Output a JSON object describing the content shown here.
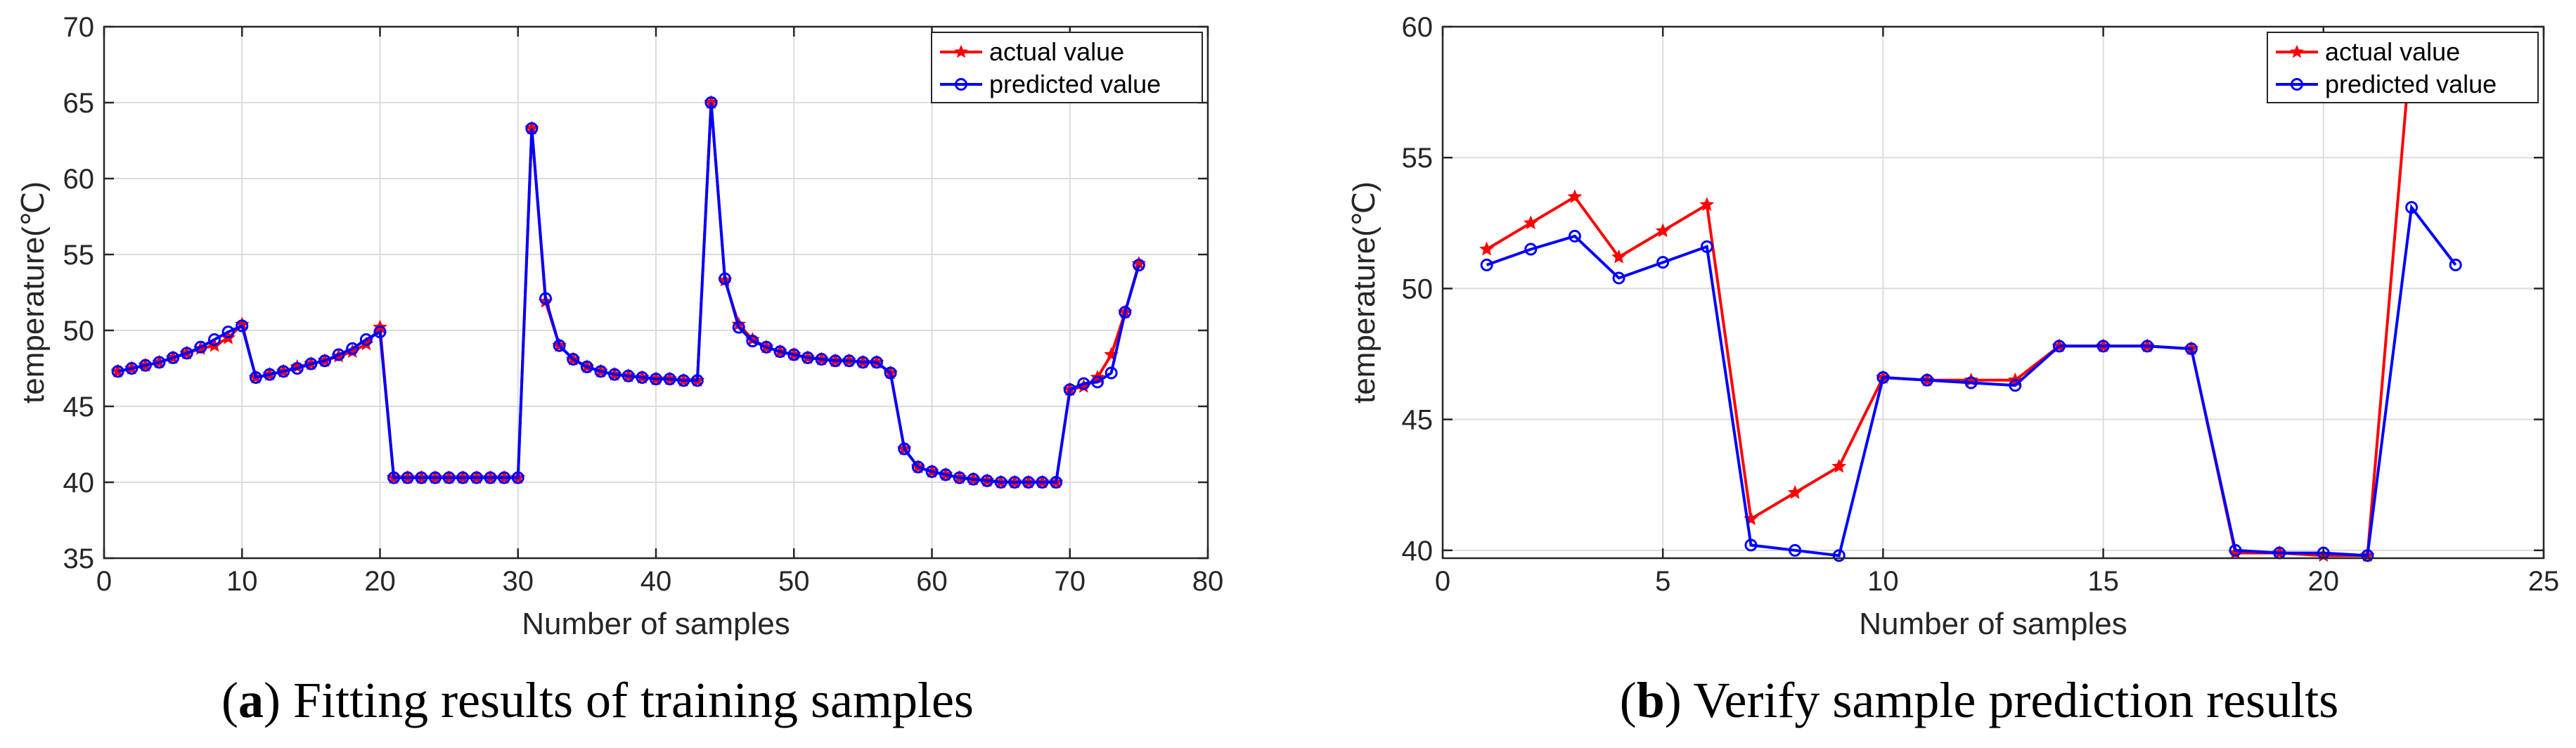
{
  "colors": {
    "actual": "#ff0000",
    "predicted": "#0000ff"
  },
  "chart_data": [
    {
      "type": "line",
      "caption_label": "a",
      "caption_text": "Fitting results of training samples",
      "xlabel": "Number of samples",
      "ylabel": "temperature(℃)",
      "xlim": [
        0,
        80
      ],
      "ylim": [
        35,
        70
      ],
      "xticks": [
        0,
        10,
        20,
        30,
        40,
        50,
        60,
        70,
        80
      ],
      "yticks": [
        35,
        40,
        45,
        50,
        55,
        60,
        65,
        70
      ],
      "grid": true,
      "legend_position": "top-right",
      "x": [
        1,
        2,
        3,
        4,
        5,
        6,
        7,
        8,
        9,
        10,
        11,
        12,
        13,
        14,
        15,
        16,
        17,
        18,
        19,
        20,
        21,
        22,
        23,
        24,
        25,
        26,
        27,
        28,
        29,
        30,
        31,
        32,
        33,
        34,
        35,
        36,
        37,
        38,
        39,
        40,
        41,
        42,
        43,
        44,
        45,
        46,
        47,
        48,
        49,
        50,
        51,
        52,
        53,
        54,
        55,
        56,
        57,
        58,
        59,
        60,
        61,
        62,
        63,
        64,
        65,
        66,
        67,
        68,
        69,
        70,
        71,
        72,
        73,
        74,
        75
      ],
      "series": [
        {
          "name": "actual value",
          "color": "#ff0000",
          "marker": "star",
          "values": [
            47.3,
            47.5,
            47.7,
            47.9,
            48.2,
            48.5,
            48.8,
            49.0,
            49.5,
            50.4,
            46.9,
            47.1,
            47.3,
            47.6,
            47.8,
            48.0,
            48.3,
            48.6,
            49.1,
            50.2,
            40.3,
            40.3,
            40.3,
            40.3,
            40.3,
            40.3,
            40.3,
            40.3,
            40.3,
            40.3,
            63.3,
            51.9,
            49.0,
            48.1,
            47.6,
            47.3,
            47.1,
            47.0,
            46.9,
            46.8,
            46.8,
            46.7,
            46.7,
            65.0,
            53.3,
            50.4,
            49.4,
            48.9,
            48.6,
            48.4,
            48.2,
            48.1,
            48.0,
            48.0,
            47.9,
            47.9,
            47.2,
            42.2,
            41.0,
            40.7,
            40.5,
            40.3,
            40.2,
            40.1,
            40.0,
            40.0,
            40.0,
            40.0,
            40.0,
            46.1,
            46.3,
            46.9,
            48.4,
            51.2,
            54.4
          ]
        },
        {
          "name": "predicted value",
          "color": "#0000ff",
          "marker": "circle",
          "values": [
            47.3,
            47.5,
            47.7,
            47.9,
            48.2,
            48.5,
            48.9,
            49.4,
            49.9,
            50.3,
            46.9,
            47.1,
            47.3,
            47.5,
            47.8,
            48.0,
            48.4,
            48.8,
            49.4,
            49.9,
            40.3,
            40.3,
            40.3,
            40.3,
            40.3,
            40.3,
            40.3,
            40.3,
            40.3,
            40.3,
            63.3,
            52.1,
            49.0,
            48.1,
            47.6,
            47.3,
            47.1,
            47.0,
            46.9,
            46.8,
            46.8,
            46.7,
            46.7,
            65.0,
            53.4,
            50.2,
            49.3,
            48.9,
            48.6,
            48.4,
            48.2,
            48.1,
            48.0,
            48.0,
            47.9,
            47.9,
            47.2,
            42.2,
            41.0,
            40.7,
            40.5,
            40.3,
            40.2,
            40.1,
            40.0,
            40.0,
            40.0,
            40.0,
            40.0,
            46.1,
            46.5,
            46.6,
            47.2,
            51.2,
            54.3
          ]
        }
      ]
    },
    {
      "type": "line",
      "caption_label": "b",
      "caption_text": "Verify sample prediction results",
      "xlabel": "Number of samples",
      "ylabel": "temperature(℃)",
      "xlim": [
        0,
        25
      ],
      "ylim": [
        39.7,
        60
      ],
      "xticks": [
        0,
        5,
        10,
        15,
        20,
        25
      ],
      "yticks": [
        40,
        45,
        50,
        55,
        60
      ],
      "grid": true,
      "legend_position": "top-right",
      "x": [
        1,
        2,
        3,
        4,
        5,
        6,
        7,
        8,
        9,
        10,
        11,
        12,
        13,
        14,
        15,
        16,
        17,
        18,
        19,
        20,
        21,
        22,
        23
      ],
      "series": [
        {
          "name": "actual value",
          "color": "#ff0000",
          "marker": "star",
          "values": [
            51.5,
            52.5,
            53.5,
            51.2,
            52.2,
            53.2,
            41.2,
            42.2,
            43.2,
            46.6,
            46.5,
            46.5,
            46.5,
            47.8,
            47.8,
            47.8,
            47.7,
            39.9,
            39.9,
            39.8,
            39.8,
            59.5,
            null
          ]
        },
        {
          "name": "predicted value",
          "color": "#0000ff",
          "marker": "circle",
          "values": [
            50.9,
            51.5,
            52.0,
            50.4,
            51.0,
            51.6,
            40.2,
            40.0,
            39.8,
            46.6,
            46.5,
            46.4,
            46.3,
            47.8,
            47.8,
            47.8,
            47.7,
            40.0,
            39.9,
            39.9,
            39.8,
            53.1,
            50.9
          ]
        }
      ]
    }
  ]
}
